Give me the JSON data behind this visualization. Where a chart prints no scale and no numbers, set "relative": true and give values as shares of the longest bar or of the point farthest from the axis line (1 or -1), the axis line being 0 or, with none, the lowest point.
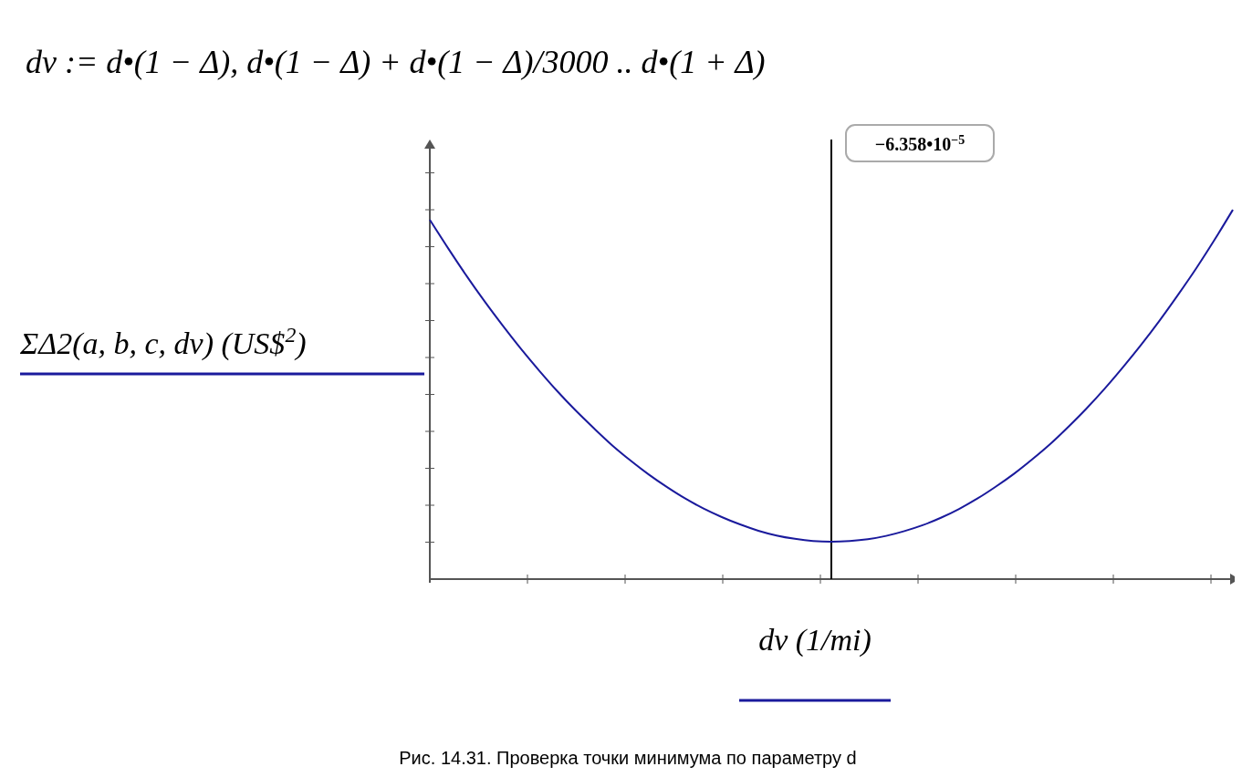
{
  "chart_data": {
    "type": "line",
    "title": "dv := d•(1 − Δ), d•(1 − Δ) + d•(1 − Δ)/3000 .. d•(1 + Δ)",
    "xlabel": "dv  (1/mi)",
    "ylabel": "ΣΔ2(a, b, c, dv)  (US$$^{2}$)",
    "relative": true,
    "color": "#1a1a9c",
    "categories": [
      null,
      null,
      null,
      null,
      null,
      null,
      null,
      null,
      null,
      null,
      null,
      null,
      null,
      null,
      null,
      null,
      null,
      null,
      null,
      null,
      null,
      null,
      null,
      null,
      null,
      null,
      null,
      null,
      null,
      null,
      null,
      null,
      null,
      null,
      null,
      null,
      null,
      null,
      null,
      null,
      null,
      null,
      null,
      null,
      null
    ],
    "values": [
      0.973,
      0.896,
      0.822,
      0.752,
      0.686,
      0.623,
      0.564,
      0.508,
      0.456,
      0.408,
      0.362,
      0.321,
      0.283,
      0.249,
      0.218,
      0.191,
      0.168,
      0.148,
      0.131,
      0.118,
      0.109,
      0.103,
      0.101,
      0.103,
      0.108,
      0.117,
      0.13,
      0.146,
      0.166,
      0.19,
      0.218,
      0.25,
      0.285,
      0.324,
      0.366,
      0.413,
      0.463,
      0.517,
      0.575,
      0.636,
      0.701,
      0.77,
      0.842,
      0.919,
      1.0
    ],
    "annotations": [
      "−6.358•10$^{−5}$",
      "Рис. 14.31. Проверка точки минимума по параметру d"
    ]
  }
}
